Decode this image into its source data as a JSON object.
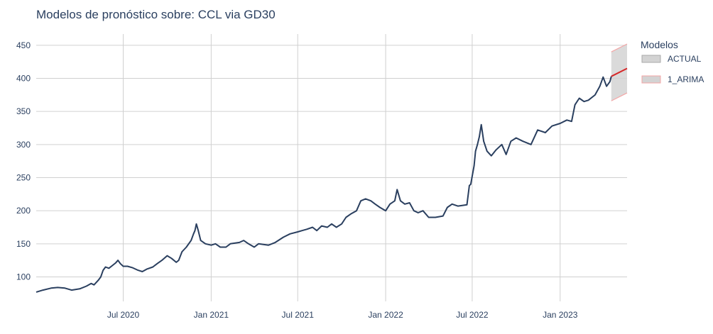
{
  "chart_data": {
    "type": "line",
    "title": "Modelos de pronóstico sobre: CCL via GD30",
    "xlabel": "",
    "ylabel": "",
    "x_range": [
      "2020-01-01",
      "2023-05-21"
    ],
    "ylim": [
      63,
      467
    ],
    "grid": true,
    "y_ticks": [
      100,
      150,
      200,
      250,
      300,
      350,
      400,
      450
    ],
    "x_ticks": [
      {
        "date": "2020-07-01",
        "label": "Jul 2020"
      },
      {
        "date": "2021-01-01",
        "label": "Jan 2021"
      },
      {
        "date": "2021-07-01",
        "label": "Jul 2021"
      },
      {
        "date": "2022-01-01",
        "label": "Jan 2022"
      },
      {
        "date": "2022-07-01",
        "label": "Jul 2022"
      },
      {
        "date": "2023-01-01",
        "label": "Jan 2023"
      }
    ],
    "legend": {
      "title": "Modelos",
      "placement": "right",
      "entries": [
        "ACTUAL",
        "1_ARIMA"
      ]
    },
    "series": [
      {
        "name": "ACTUAL",
        "color": "#2a3f5f",
        "points": [
          [
            "2020-01-01",
            77
          ],
          [
            "2020-01-15",
            80
          ],
          [
            "2020-02-01",
            83
          ],
          [
            "2020-02-15",
            84
          ],
          [
            "2020-03-01",
            83
          ],
          [
            "2020-03-15",
            80
          ],
          [
            "2020-04-01",
            82
          ],
          [
            "2020-04-15",
            86
          ],
          [
            "2020-04-25",
            90
          ],
          [
            "2020-05-01",
            88
          ],
          [
            "2020-05-10",
            95
          ],
          [
            "2020-05-15",
            100
          ],
          [
            "2020-05-20",
            110
          ],
          [
            "2020-05-25",
            115
          ],
          [
            "2020-06-01",
            113
          ],
          [
            "2020-06-08",
            117
          ],
          [
            "2020-06-15",
            121
          ],
          [
            "2020-06-20",
            125
          ],
          [
            "2020-06-25",
            120
          ],
          [
            "2020-07-01",
            116
          ],
          [
            "2020-07-10",
            116
          ],
          [
            "2020-07-20",
            114
          ],
          [
            "2020-08-01",
            110
          ],
          [
            "2020-08-10",
            108
          ],
          [
            "2020-08-20",
            112
          ],
          [
            "2020-09-01",
            115
          ],
          [
            "2020-09-10",
            120
          ],
          [
            "2020-09-20",
            125
          ],
          [
            "2020-10-01",
            132
          ],
          [
            "2020-10-10",
            128
          ],
          [
            "2020-10-20",
            122
          ],
          [
            "2020-10-25",
            125
          ],
          [
            "2020-11-01",
            138
          ],
          [
            "2020-11-10",
            145
          ],
          [
            "2020-11-20",
            155
          ],
          [
            "2020-11-25",
            165
          ],
          [
            "2020-11-28",
            170
          ],
          [
            "2020-12-01",
            180
          ],
          [
            "2020-12-05",
            170
          ],
          [
            "2020-12-10",
            155
          ],
          [
            "2020-12-20",
            150
          ],
          [
            "2021-01-01",
            148
          ],
          [
            "2021-01-10",
            150
          ],
          [
            "2021-01-20",
            145
          ],
          [
            "2021-02-01",
            145
          ],
          [
            "2021-02-10",
            150
          ],
          [
            "2021-03-01",
            152
          ],
          [
            "2021-03-10",
            155
          ],
          [
            "2021-03-20",
            150
          ],
          [
            "2021-04-01",
            145
          ],
          [
            "2021-04-10",
            150
          ],
          [
            "2021-05-01",
            148
          ],
          [
            "2021-05-15",
            152
          ],
          [
            "2021-06-01",
            160
          ],
          [
            "2021-06-15",
            165
          ],
          [
            "2021-07-01",
            168
          ],
          [
            "2021-07-10",
            170
          ],
          [
            "2021-07-20",
            172
          ],
          [
            "2021-08-01",
            175
          ],
          [
            "2021-08-10",
            170
          ],
          [
            "2021-08-20",
            177
          ],
          [
            "2021-09-01",
            175
          ],
          [
            "2021-09-10",
            180
          ],
          [
            "2021-09-20",
            175
          ],
          [
            "2021-10-01",
            180
          ],
          [
            "2021-10-10",
            190
          ],
          [
            "2021-10-20",
            195
          ],
          [
            "2021-11-01",
            200
          ],
          [
            "2021-11-10",
            215
          ],
          [
            "2021-11-20",
            218
          ],
          [
            "2021-12-01",
            215
          ],
          [
            "2021-12-10",
            210
          ],
          [
            "2021-12-20",
            205
          ],
          [
            "2022-01-01",
            200
          ],
          [
            "2022-01-10",
            210
          ],
          [
            "2022-01-20",
            215
          ],
          [
            "2022-01-25",
            232
          ],
          [
            "2022-02-01",
            215
          ],
          [
            "2022-02-10",
            210
          ],
          [
            "2022-02-20",
            212
          ],
          [
            "2022-03-01",
            200
          ],
          [
            "2022-03-10",
            197
          ],
          [
            "2022-03-20",
            200
          ],
          [
            "2022-04-01",
            190
          ],
          [
            "2022-04-15",
            190
          ],
          [
            "2022-05-01",
            192
          ],
          [
            "2022-05-10",
            205
          ],
          [
            "2022-05-20",
            210
          ],
          [
            "2022-06-01",
            207
          ],
          [
            "2022-06-10",
            208
          ],
          [
            "2022-06-20",
            209
          ],
          [
            "2022-06-25",
            238
          ],
          [
            "2022-06-28",
            240
          ],
          [
            "2022-07-01",
            252
          ],
          [
            "2022-07-05",
            268
          ],
          [
            "2022-07-08",
            290
          ],
          [
            "2022-07-12",
            300
          ],
          [
            "2022-07-16",
            312
          ],
          [
            "2022-07-20",
            330
          ],
          [
            "2022-07-25",
            305
          ],
          [
            "2022-08-01",
            290
          ],
          [
            "2022-08-10",
            283
          ],
          [
            "2022-08-20",
            292
          ],
          [
            "2022-09-01",
            300
          ],
          [
            "2022-09-10",
            285
          ],
          [
            "2022-09-20",
            305
          ],
          [
            "2022-10-01",
            310
          ],
          [
            "2022-10-15",
            305
          ],
          [
            "2022-11-01",
            300
          ],
          [
            "2022-11-15",
            322
          ],
          [
            "2022-12-01",
            318
          ],
          [
            "2022-12-15",
            328
          ],
          [
            "2023-01-01",
            332
          ],
          [
            "2023-01-15",
            337
          ],
          [
            "2023-01-25",
            335
          ],
          [
            "2023-02-01",
            360
          ],
          [
            "2023-02-10",
            370
          ],
          [
            "2023-02-20",
            365
          ],
          [
            "2023-03-01",
            367
          ],
          [
            "2023-03-15",
            375
          ],
          [
            "2023-03-25",
            388
          ],
          [
            "2023-04-01",
            402
          ],
          [
            "2023-04-08",
            388
          ],
          [
            "2023-04-15",
            395
          ],
          [
            "2023-04-18",
            403
          ]
        ]
      },
      {
        "name": "1_ARIMA",
        "color": "#d62728",
        "points": [
          [
            "2023-04-18",
            403
          ],
          [
            "2023-05-21",
            415
          ]
        ],
        "band": {
          "color": "#d3d3d3",
          "upper": [
            [
              "2023-04-18",
              440
            ],
            [
              "2023-05-21",
              452
            ]
          ],
          "lower": [
            [
              "2023-04-18",
              366
            ],
            [
              "2023-05-21",
              378
            ]
          ]
        }
      }
    ]
  }
}
